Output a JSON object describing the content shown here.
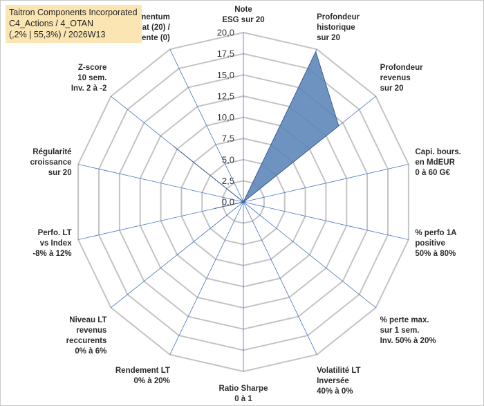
{
  "title_lines": [
    "Taitron Components Incorporated",
    "C4_Actions / 4_OTAN",
    "(,2% | 55,3%) / 2026W13"
  ],
  "chart_data": {
    "type": "radar",
    "rmax": 20,
    "tick_step": 2.5,
    "tick_labels": [
      "0,0",
      "2,5",
      "5,0",
      "7,5",
      "10,0",
      "12,5",
      "15,0",
      "17,5",
      "20,0"
    ],
    "axes": [
      {
        "label": [
          "Note",
          "ESG sur 20"
        ],
        "value": 0
      },
      {
        "label": [
          "Profondeur",
          "historique",
          "sur 20"
        ],
        "value": 19.7
      },
      {
        "label": [
          "Profondeur",
          "revenus",
          "sur 20"
        ],
        "value": 14.4
      },
      {
        "label": [
          "Capi. bours.",
          "en MdEUR",
          "0 à 60 G€"
        ],
        "value": 0
      },
      {
        "label": [
          "% perfo 1A",
          "positive",
          "50% à 80%"
        ],
        "value": 0
      },
      {
        "label": [
          "% perte max.",
          "sur 1 sem.",
          "Inv. 50% à 20%"
        ],
        "value": 0
      },
      {
        "label": [
          "Volatilité LT",
          "Inversée",
          "40% à 0%"
        ],
        "value": 0
      },
      {
        "label": [
          "Ratio Sharpe",
          "0 à 1"
        ],
        "value": 0
      },
      {
        "label": [
          "Rendement LT",
          "0% à 20%"
        ],
        "value": 0
      },
      {
        "label": [
          "Niveau LT",
          "revenus",
          "reccurents",
          "0% à 6%"
        ],
        "value": 0
      },
      {
        "label": [
          "Perfo. LT",
          "vs Index",
          "-8% à 12%"
        ],
        "value": 3.5
      },
      {
        "label": [
          "Régularité",
          "croissance",
          "sur 20"
        ],
        "value": 0
      },
      {
        "label": [
          "Z-score",
          "10 sem.",
          "Inv. 2 à -2"
        ],
        "value": 10.5
      },
      {
        "label": [
          "Momentum",
          "Achat (20) /",
          "Vente (0)"
        ],
        "value": 0
      }
    ],
    "grid": true,
    "legend": "none",
    "colors": {
      "fill": "#5b84b8",
      "stroke": "#3a5f93",
      "grid": "#c3c3c3",
      "axis": "#4472c4"
    }
  }
}
